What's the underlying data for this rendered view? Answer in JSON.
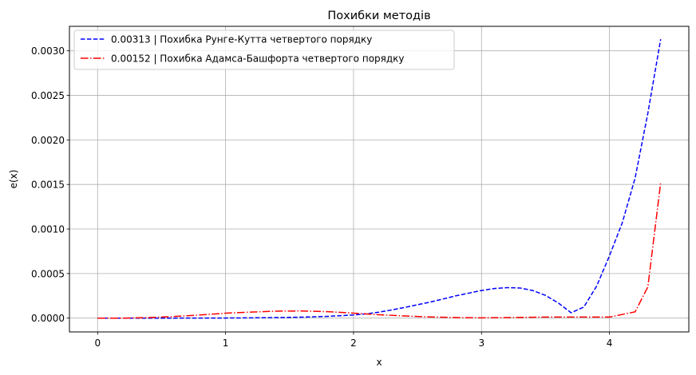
{
  "chart_data": {
    "type": "line",
    "title": "Похибки методів",
    "xlabel": "x",
    "ylabel": "e(x)",
    "xlim": [
      -0.22,
      4.62
    ],
    "ylim": [
      -0.000155,
      0.003275
    ],
    "grid": true,
    "legend_position": "top-left",
    "x_ticks": [
      0,
      1,
      2,
      3,
      4
    ],
    "x_tick_labels": [
      "0",
      "1",
      "2",
      "3",
      "4"
    ],
    "y_ticks": [
      0,
      0.0005,
      0.001,
      0.0015,
      0.002,
      0.0025,
      0.003
    ],
    "y_tick_labels": [
      "0.0000",
      "0.0005",
      "0.0010",
      "0.0015",
      "0.0020",
      "0.0025",
      "0.0030"
    ],
    "series": [
      {
        "name": "0.00313 | Похибка Рунге-Кутта четвертого порядку",
        "color": "#0000ff",
        "dash": "dashed",
        "x": [
          0,
          0.2,
          0.4,
          0.6,
          0.8,
          1.0,
          1.2,
          1.4,
          1.6,
          1.8,
          2.0,
          2.1,
          2.2,
          2.3,
          2.4,
          2.5,
          2.6,
          2.7,
          2.8,
          2.9,
          3.0,
          3.1,
          3.2,
          3.3,
          3.4,
          3.5,
          3.6,
          3.7,
          3.8,
          3.9,
          4.0,
          4.1,
          4.2,
          4.3,
          4.4
        ],
        "y": [
          0,
          0,
          0,
          0,
          1e-06,
          1e-06,
          3e-06,
          6e-06,
          1.1e-05,
          2e-05,
          3.5e-05,
          4.8e-05,
          6.7e-05,
          9.2e-05,
          0.00012,
          0.00015,
          0.00018,
          0.000215,
          0.00025,
          0.00028,
          0.00031,
          0.000332,
          0.000342,
          0.000338,
          0.00031,
          0.000255,
          0.00017,
          6e-05,
          0.000125,
          0.00036,
          0.0007,
          0.00107,
          0.00157,
          0.0023,
          0.00313
        ]
      },
      {
        "name": "0.00152 | Похибка Адамса-Башфорта четвертого порядку",
        "color": "#ff0000",
        "dash": "dashdot",
        "x": [
          0,
          0.2,
          0.4,
          0.6,
          0.8,
          1.0,
          1.2,
          1.4,
          1.6,
          1.8,
          2.0,
          2.2,
          2.4,
          2.6,
          2.8,
          3.0,
          3.2,
          3.4,
          3.6,
          3.8,
          4.0,
          4.2,
          4.3,
          4.4
        ],
        "y": [
          0,
          0,
          6e-06,
          1.8e-05,
          3.5e-05,
          5.5e-05,
          6.8e-05,
          7.8e-05,
          8e-05,
          7.2e-05,
          5.6e-05,
          3.8e-05,
          2.4e-05,
          1.3e-05,
          6e-06,
          3e-06,
          6e-06,
          1e-05,
          1.2e-05,
          1.2e-05,
          1.2e-05,
          7e-05,
          0.00035,
          0.00152
        ]
      }
    ]
  }
}
